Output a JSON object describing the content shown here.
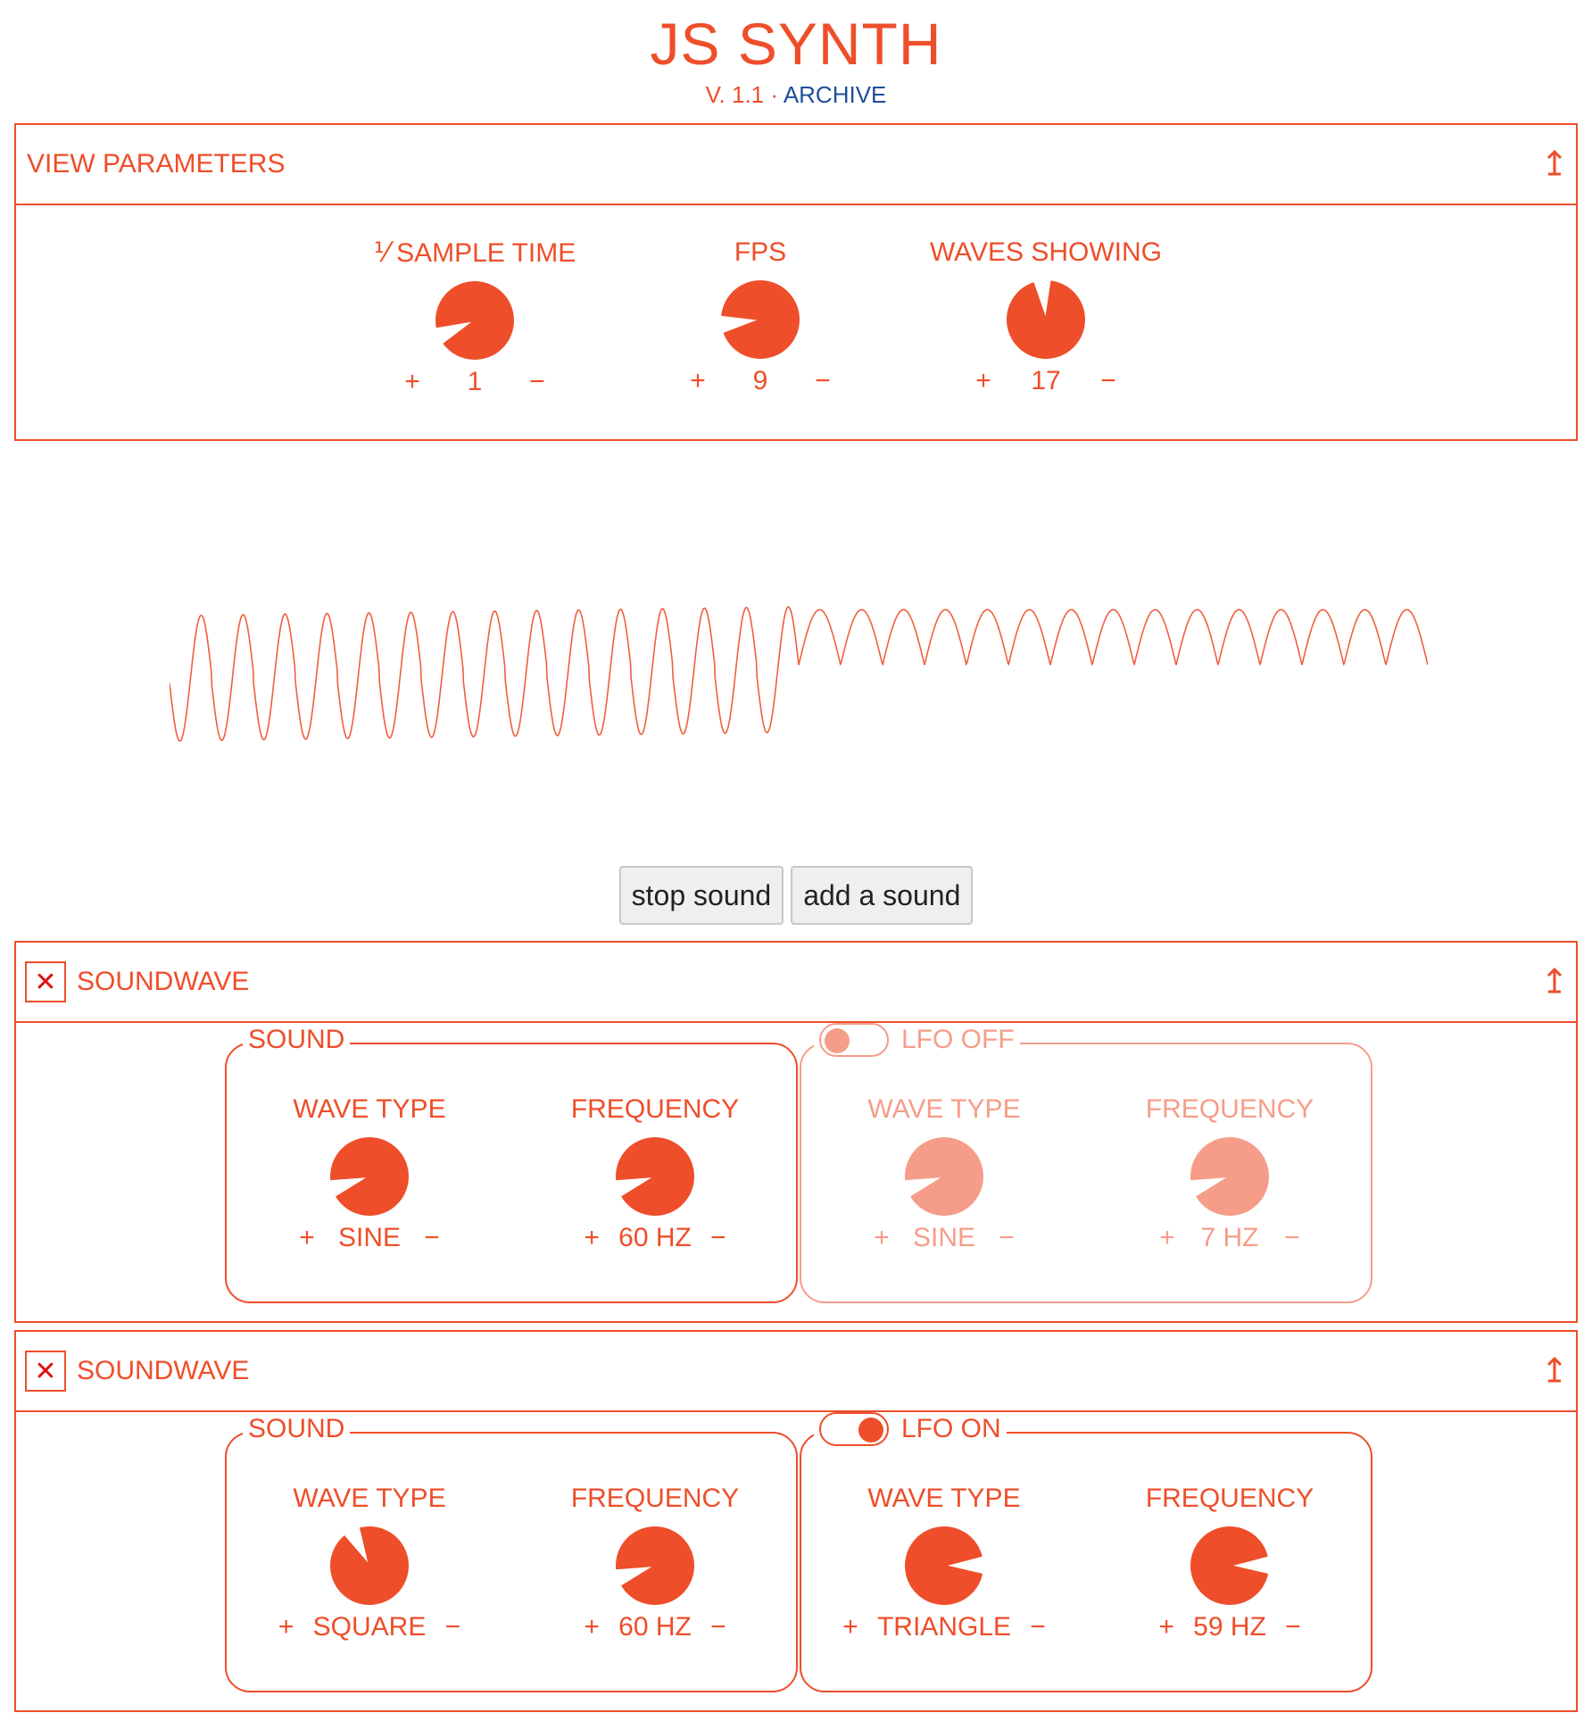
{
  "header": {
    "title": "JS SYNTH",
    "version": "V. 1.1",
    "separator": " · ",
    "archive_link": "ARCHIVE"
  },
  "view_params": {
    "title": "VIEW PARAMETERS",
    "knobs": [
      {
        "label": "⅟ SAMPLE TIME",
        "value": "1",
        "level": 0.08
      },
      {
        "label": "FPS",
        "value": "9",
        "level": 0.14
      },
      {
        "label": "WAVES SHOWING",
        "value": "17",
        "level": 0.48
      }
    ]
  },
  "controls": {
    "plus": "+",
    "minus": "−"
  },
  "buttons": {
    "stop": "stop sound",
    "add": "add a sound"
  },
  "soundwaves": [
    {
      "title": "SOUNDWAVE",
      "sound": {
        "legend": "SOUND",
        "wave_type": {
          "label": "WAVE TYPE",
          "value": "SINE",
          "level": 0.1
        },
        "frequency": {
          "label": "FREQUENCY",
          "value": "60 HZ",
          "level": 0.1
        }
      },
      "lfo": {
        "legend": "LFO OFF",
        "on": false,
        "wave_type": {
          "label": "WAVE TYPE",
          "value": "SINE",
          "level": 0.1
        },
        "frequency": {
          "label": "FREQUENCY",
          "value": "7 HZ",
          "level": 0.1
        }
      }
    },
    {
      "title": "SOUNDWAVE",
      "sound": {
        "legend": "SOUND",
        "wave_type": {
          "label": "WAVE TYPE",
          "value": "SQUARE",
          "level": 0.4
        },
        "frequency": {
          "label": "FREQUENCY",
          "value": "60 HZ",
          "level": 0.1
        }
      },
      "lfo": {
        "legend": "LFO ON",
        "on": true,
        "wave_type": {
          "label": "WAVE TYPE",
          "value": "TRIANGLE",
          "level": 0.83
        },
        "frequency": {
          "label": "FREQUENCY",
          "value": "59 HZ",
          "level": 0.83
        }
      }
    }
  ],
  "colors": {
    "accent": "#ee4e2a",
    "faded": "#f39a84",
    "link": "#1f4e9c",
    "close": "#e01010"
  }
}
